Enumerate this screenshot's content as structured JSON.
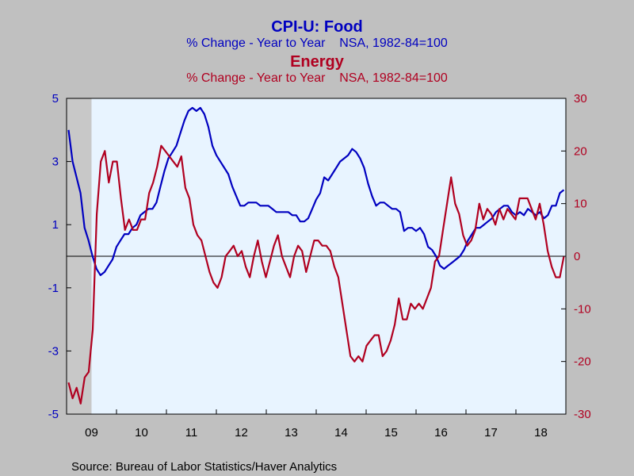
{
  "chart_data": {
    "type": "line",
    "titles": [
      {
        "text": "CPI-U: Food",
        "color": "#0000c0"
      },
      {
        "text": "% Change - Year to Year    NSA, 1982-84=100",
        "color": "#0000c0"
      },
      {
        "text": "Energy",
        "color": "#b00020"
      },
      {
        "text": "% Change - Year to Year    NSA, 1982-84=100",
        "color": "#b00020"
      }
    ],
    "source": "Source:  Bureau of Labor Statistics/Haver Analytics",
    "x_start": "2009-01",
    "x_end": "2018-12",
    "x_tick_labels": [
      "09",
      "10",
      "11",
      "12",
      "13",
      "14",
      "15",
      "16",
      "17",
      "18"
    ],
    "recession_shading": {
      "from": "2009-01",
      "to": "2009-06"
    },
    "left_axis": {
      "ylim": [
        -5,
        5
      ],
      "ticks": [
        5,
        3,
        1,
        -1,
        -3,
        -5
      ],
      "color": "#0000c0"
    },
    "right_axis": {
      "ylim": [
        -30,
        30
      ],
      "ticks": [
        30,
        20,
        10,
        0,
        -10,
        -20,
        -30
      ],
      "color": "#b00020"
    },
    "zero_line": 0,
    "series": [
      {
        "name": "CPI-U: Food",
        "axis": "left",
        "color": "#0000c0",
        "values": [
          4.0,
          3.0,
          2.5,
          2.0,
          0.9,
          0.5,
          0.0,
          -0.4,
          -0.6,
          -0.5,
          -0.3,
          -0.1,
          0.3,
          0.5,
          0.7,
          0.7,
          0.9,
          1.0,
          1.3,
          1.4,
          1.5,
          1.5,
          1.7,
          2.2,
          2.7,
          3.1,
          3.3,
          3.5,
          3.9,
          4.3,
          4.6,
          4.7,
          4.6,
          4.7,
          4.5,
          4.1,
          3.5,
          3.2,
          3.0,
          2.8,
          2.6,
          2.2,
          1.9,
          1.6,
          1.6,
          1.7,
          1.7,
          1.7,
          1.6,
          1.6,
          1.6,
          1.5,
          1.4,
          1.4,
          1.4,
          1.4,
          1.3,
          1.3,
          1.1,
          1.1,
          1.2,
          1.5,
          1.8,
          2.0,
          2.5,
          2.4,
          2.6,
          2.8,
          3.0,
          3.1,
          3.2,
          3.4,
          3.3,
          3.1,
          2.8,
          2.3,
          1.9,
          1.6,
          1.7,
          1.7,
          1.6,
          1.5,
          1.5,
          1.4,
          0.8,
          0.9,
          0.9,
          0.8,
          0.9,
          0.7,
          0.3,
          0.2,
          0.0,
          -0.3,
          -0.4,
          -0.3,
          -0.2,
          -0.1,
          0.0,
          0.2,
          0.5,
          0.7,
          0.9,
          0.9,
          1.0,
          1.1,
          1.2,
          1.4,
          1.5,
          1.6,
          1.6,
          1.4,
          1.3,
          1.4,
          1.3,
          1.5,
          1.4,
          1.3,
          1.4,
          1.2,
          1.3,
          1.6,
          1.6,
          2.0,
          2.1
        ]
      },
      {
        "name": "Energy",
        "axis": "right",
        "color": "#b00020",
        "values": [
          -24,
          -27,
          -25,
          -28,
          -23,
          -22,
          -14,
          8,
          18,
          20,
          14,
          18,
          18,
          11,
          5,
          7,
          5,
          5,
          7,
          7,
          12,
          14,
          17,
          21,
          20,
          19,
          18,
          17,
          19,
          13,
          11,
          6,
          4,
          3,
          0,
          -3,
          -5,
          -6,
          -4,
          0,
          1,
          2,
          0,
          1,
          -2,
          -4,
          0,
          3,
          -1,
          -4,
          -1,
          2,
          4,
          0,
          -2,
          -4,
          0,
          2,
          1,
          -3,
          0,
          3,
          3,
          2,
          2,
          1,
          -2,
          -4,
          -9,
          -14,
          -19,
          -20,
          -19,
          -20,
          -17,
          -16,
          -15,
          -15,
          -19,
          -18,
          -16,
          -13,
          -8,
          -12,
          -12,
          -9,
          -10,
          -9,
          -10,
          -8,
          -6,
          -1,
          0,
          5,
          10,
          15,
          10,
          8,
          4,
          2,
          3,
          5,
          10,
          7,
          9,
          8,
          6,
          9,
          7,
          9,
          8,
          7,
          11,
          11,
          11,
          9,
          7,
          10,
          6,
          1,
          -2,
          -4,
          -4,
          0
        ]
      }
    ]
  }
}
